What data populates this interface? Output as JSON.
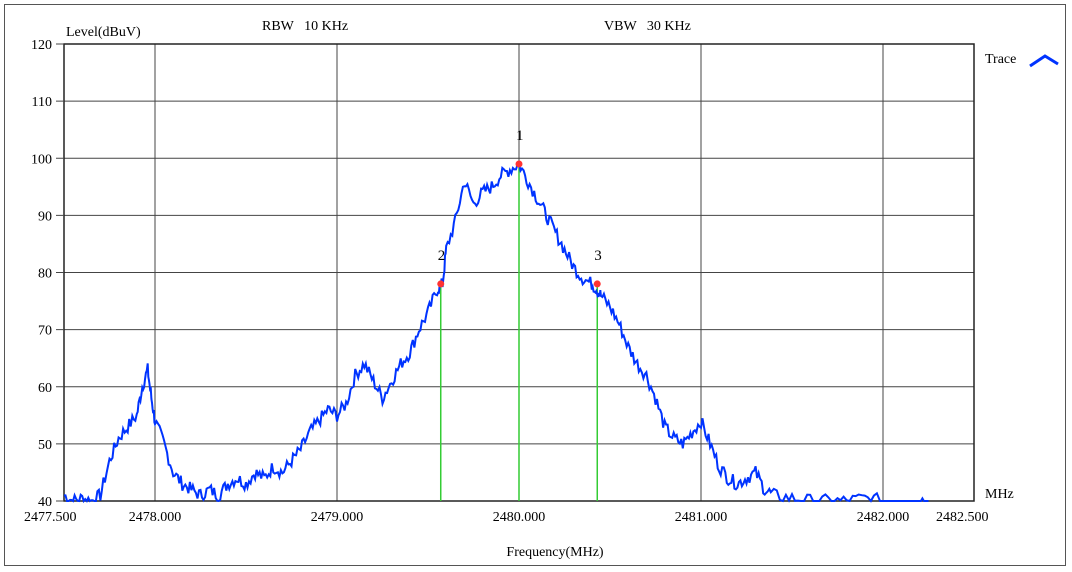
{
  "header": {
    "level_label": "Level(dBuV)",
    "rbw": "RBW   10 KHz",
    "vbw": "VBW   30 KHz"
  },
  "legend": {
    "label": "Trace",
    "color": "#0033ff"
  },
  "unit_label": "MHz",
  "chart_data": {
    "type": "line",
    "title": "",
    "xlabel": "Frequency(MHz)",
    "ylabel": "Level(dBuV)",
    "xlim": [
      2477.5,
      2482.5
    ],
    "ylim": [
      40,
      120
    ],
    "x_ticks": [
      2477.5,
      2478.0,
      2479.0,
      2480.0,
      2481.0,
      2482.0,
      2482.5
    ],
    "x_tick_labels": [
      "2477.500",
      "2478.000",
      "2479.000",
      "2480.000",
      "2481.000",
      "2482.000",
      "2482.500"
    ],
    "y_ticks": [
      40,
      50,
      60,
      70,
      80,
      90,
      100,
      110,
      120
    ],
    "y_tick_labels": [
      "40",
      "50",
      "60",
      "70",
      "80",
      "90",
      "100",
      "110",
      "120"
    ],
    "grid": true,
    "legend_position": "top-right",
    "series": [
      {
        "name": "Trace",
        "color": "#0033ff",
        "x": [
          2477.5,
          2477.55,
          2477.6,
          2477.65,
          2477.7,
          2477.75,
          2477.8,
          2477.85,
          2477.9,
          2477.93,
          2477.96,
          2477.98,
          2478.0,
          2478.05,
          2478.1,
          2478.15,
          2478.2,
          2478.25,
          2478.3,
          2478.35,
          2478.4,
          2478.45,
          2478.5,
          2478.55,
          2478.6,
          2478.65,
          2478.7,
          2478.75,
          2478.8,
          2478.85,
          2478.9,
          2478.95,
          2479.0,
          2479.05,
          2479.1,
          2479.15,
          2479.2,
          2479.25,
          2479.3,
          2479.35,
          2479.4,
          2479.45,
          2479.5,
          2479.55,
          2479.58,
          2479.6,
          2479.65,
          2479.7,
          2479.75,
          2479.8,
          2479.85,
          2479.9,
          2479.95,
          2480.0,
          2480.05,
          2480.1,
          2480.15,
          2480.2,
          2480.25,
          2480.3,
          2480.35,
          2480.4,
          2480.43,
          2480.45,
          2480.5,
          2480.55,
          2480.6,
          2480.65,
          2480.7,
          2480.75,
          2480.8,
          2480.85,
          2480.9,
          2480.95,
          2481.0,
          2481.05,
          2481.1,
          2481.15,
          2481.2,
          2481.25,
          2481.3,
          2481.35,
          2481.4,
          2481.5,
          2481.6,
          2481.7,
          2481.8,
          2481.9,
          2482.0,
          2482.1,
          2482.2,
          2482.25
        ],
        "y": [
          41,
          40,
          40.5,
          40,
          41,
          47,
          51,
          53,
          55,
          60,
          63,
          58,
          54,
          50,
          45,
          43,
          42,
          41,
          42,
          41,
          43,
          44,
          43,
          45,
          44,
          46,
          45,
          47,
          49,
          52,
          54,
          56,
          55,
          57,
          62,
          64,
          61,
          58,
          61,
          64,
          66,
          70,
          73,
          77,
          78,
          84,
          89,
          96,
          92,
          94,
          95,
          97,
          98,
          99,
          96,
          93,
          90,
          87,
          84,
          81,
          79,
          78,
          77,
          76,
          74,
          71,
          67,
          64,
          62,
          58,
          53,
          51,
          50,
          52,
          54,
          50,
          46,
          44,
          43,
          44,
          45,
          42,
          41,
          40.5,
          40,
          40,
          40,
          40.5,
          40,
          40,
          40,
          40
        ]
      }
    ],
    "markers": [
      {
        "label": "1",
        "x": 2480.0,
        "y": 99
      },
      {
        "label": "2",
        "x": 2479.57,
        "y": 78
      },
      {
        "label": "3",
        "x": 2480.43,
        "y": 78
      }
    ],
    "marker_line_color": "#33cc33",
    "marker_color": "#ff3333"
  }
}
